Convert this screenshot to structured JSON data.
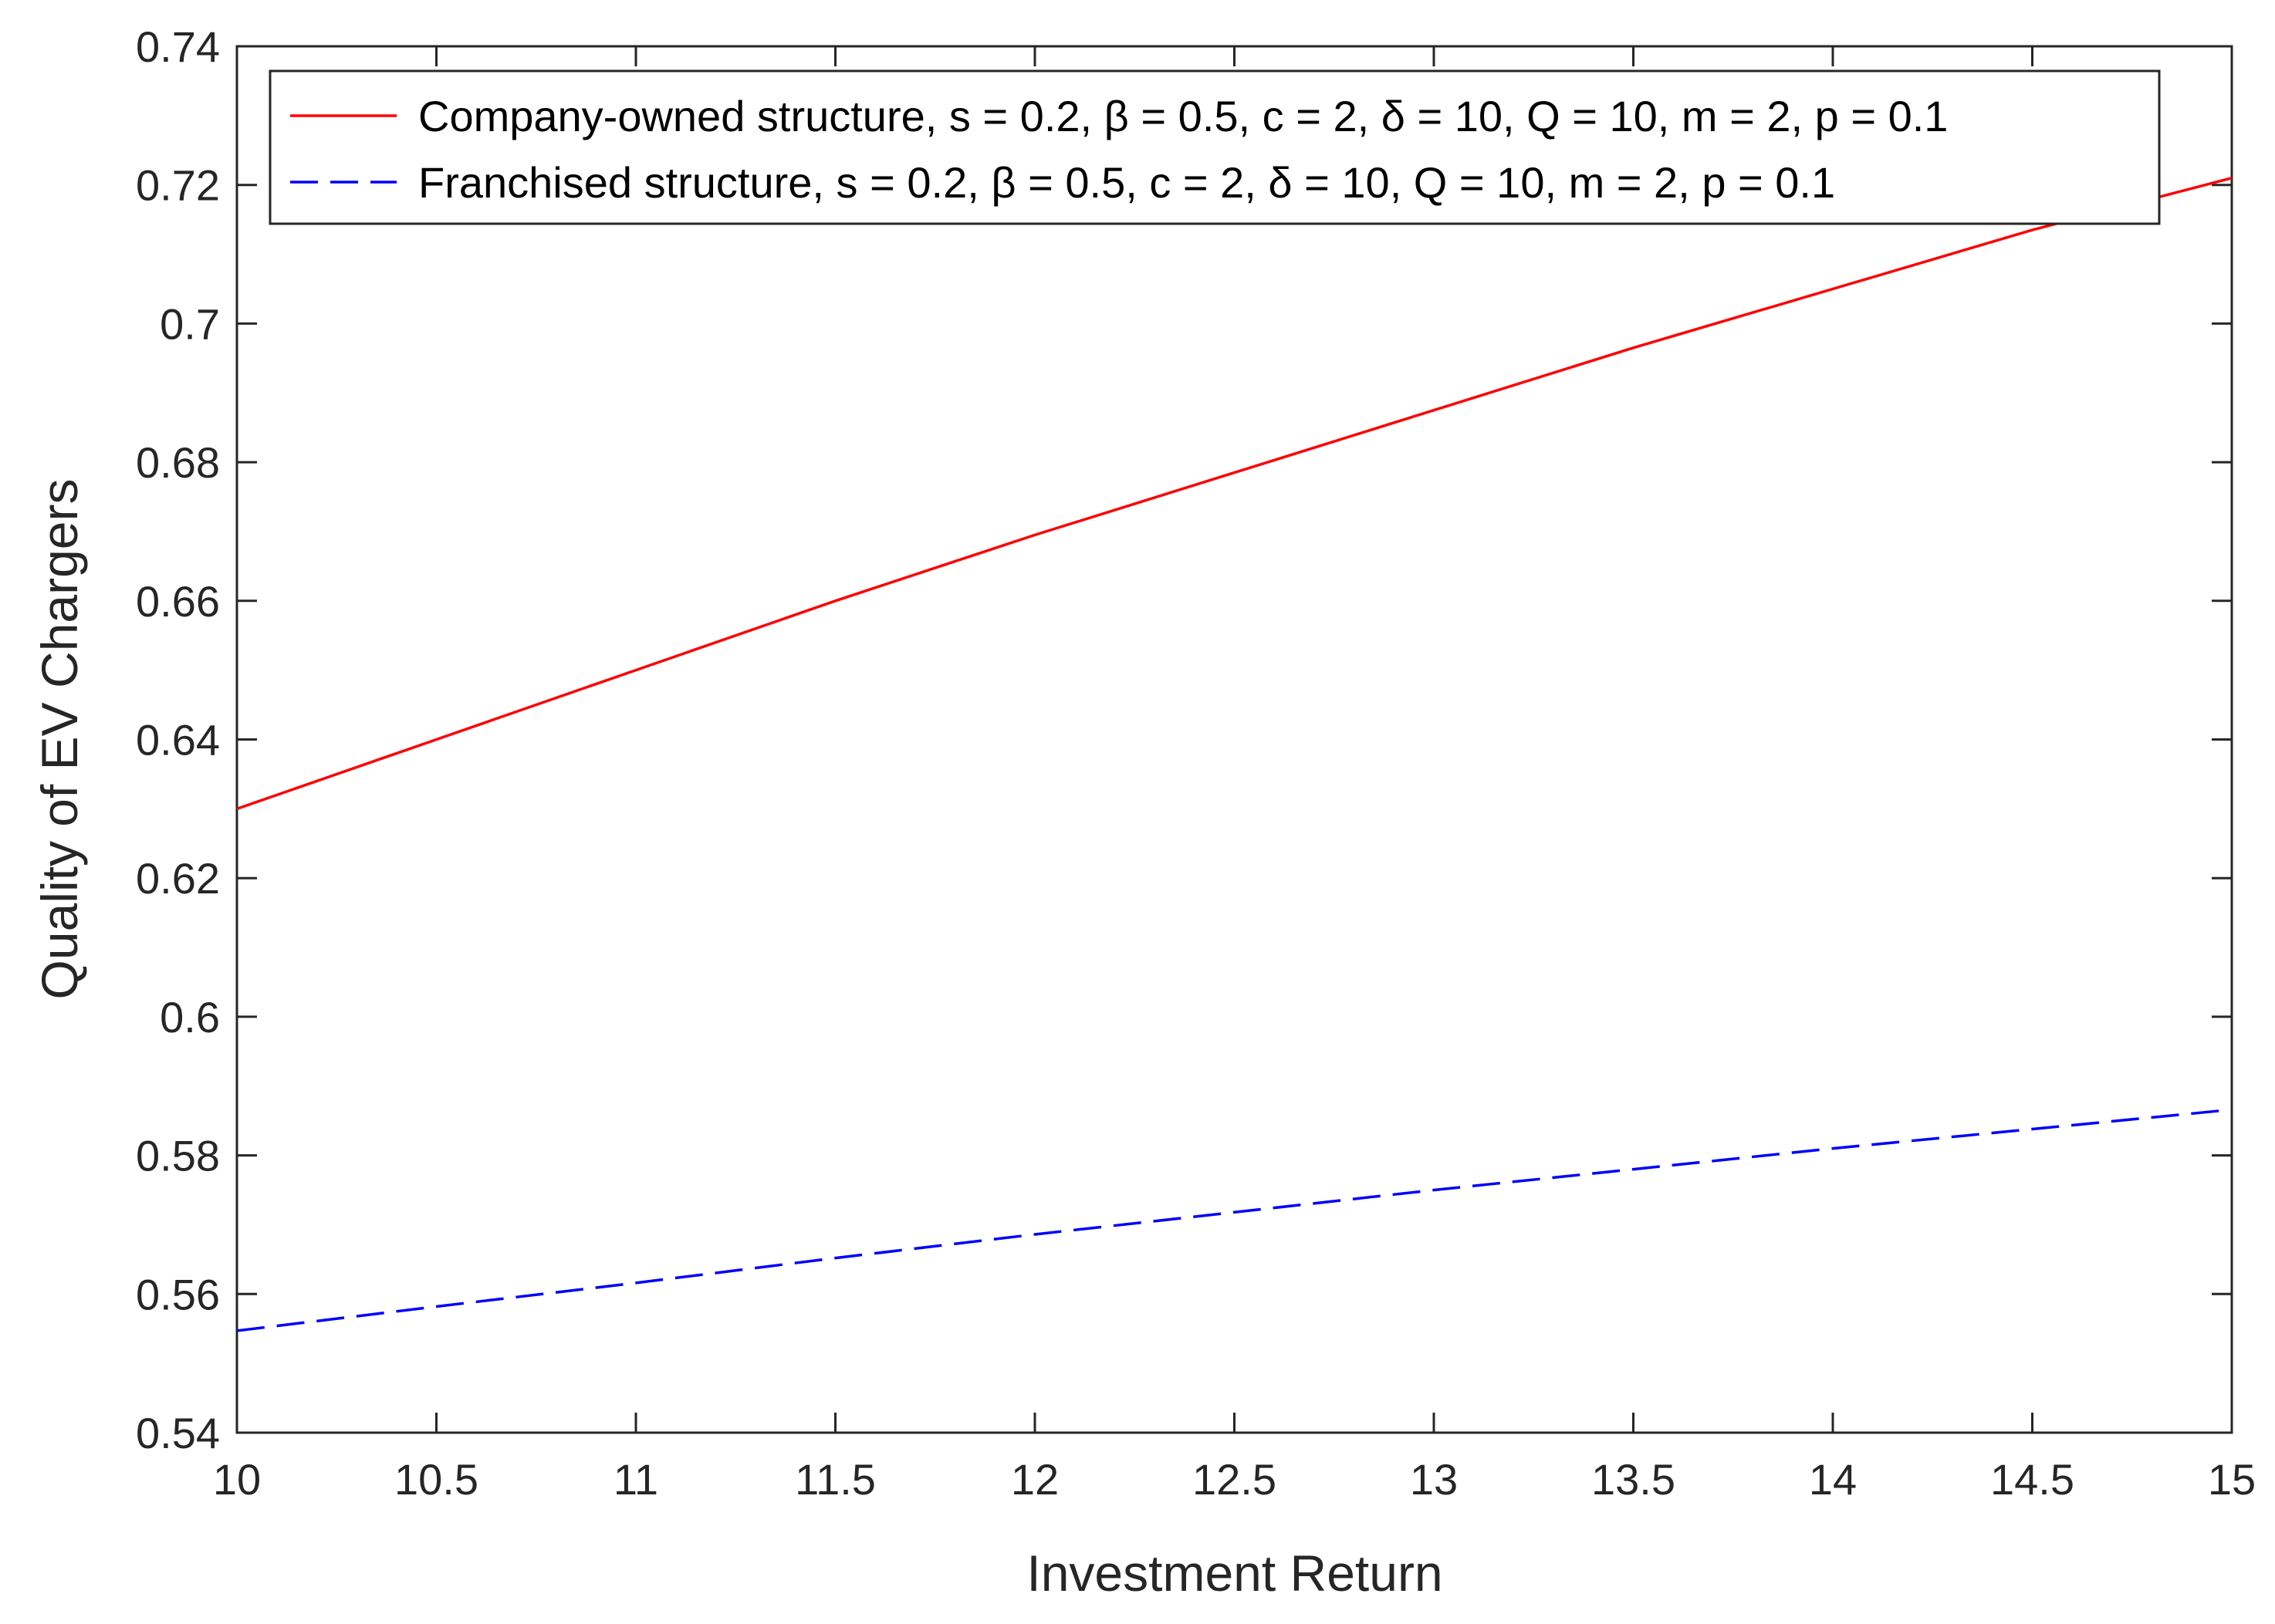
{
  "chart_data": {
    "type": "line",
    "title": "",
    "xlabel": "Investment Return",
    "ylabel": "Quality of EV Chargers",
    "xlim": [
      10,
      15
    ],
    "ylim": [
      0.54,
      0.74
    ],
    "xticks": [
      10,
      10.5,
      11,
      11.5,
      12,
      12.5,
      13,
      13.5,
      14,
      14.5,
      15
    ],
    "xtick_labels": [
      "10",
      "10.5",
      "11",
      "11.5",
      "12",
      "12.5",
      "13",
      "13.5",
      "14",
      "14.5",
      "15"
    ],
    "yticks": [
      0.54,
      0.56,
      0.58,
      0.6,
      0.62,
      0.64,
      0.66,
      0.68,
      0.7,
      0.72,
      0.74
    ],
    "ytick_labels": [
      "0.54",
      "0.56",
      "0.58",
      "0.6",
      "0.62",
      "0.64",
      "0.66",
      "0.68",
      "0.7",
      "0.72",
      "0.74"
    ],
    "grid": false,
    "legend_position": "top",
    "series": [
      {
        "name": "Company-owned structure, s = 0.2, β = 0.5, c = 2, δ = 10, Q = 10, m = 2, p = 0.1",
        "color": "#ff0000",
        "line_style": "solid",
        "x": [
          10,
          10.5,
          11,
          11.5,
          12,
          12.5,
          13,
          13.5,
          14,
          14.5,
          15
        ],
        "y": [
          0.63,
          0.64,
          0.65,
          0.66,
          0.6695,
          0.6785,
          0.6875,
          0.6965,
          0.705,
          0.7135,
          0.721
        ]
      },
      {
        "name": "Franchised structure, s = 0.2, β = 0.5, c = 2, δ = 10, Q = 10, m = 2, p = 0.1",
        "color": "#0000ff",
        "line_style": "dashed",
        "x": [
          10,
          10.5,
          11,
          11.5,
          12,
          12.5,
          13,
          13.5,
          14,
          14.5,
          15
        ],
        "y": [
          0.5547,
          0.5582,
          0.5616,
          0.5652,
          0.5686,
          0.5718,
          0.575,
          0.578,
          0.581,
          0.5838,
          0.5866
        ]
      }
    ]
  }
}
